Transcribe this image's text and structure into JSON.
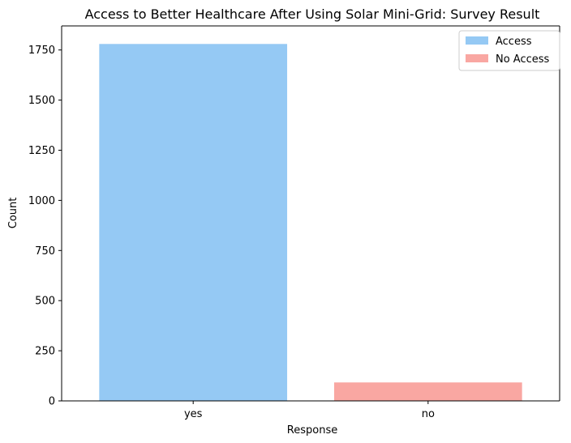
{
  "chart_data": {
    "type": "bar",
    "title": "Access to Better Healthcare After Using Solar Mini-Grid: Survey Result",
    "xlabel": "Response",
    "ylabel": "Count",
    "categories": [
      "yes",
      "no"
    ],
    "values": [
      1780,
      92
    ],
    "bar_colors": [
      "#95c9f4",
      "#f9a7a2"
    ],
    "ylim": [
      0,
      1870
    ],
    "yticks": [
      0,
      250,
      500,
      750,
      1000,
      1250,
      1500,
      1750
    ],
    "legend": {
      "placement": "top-right",
      "entries": [
        {
          "label": "Access",
          "color": "#95c9f4"
        },
        {
          "label": "No Access",
          "color": "#f9a7a2"
        }
      ]
    },
    "grid": false
  }
}
